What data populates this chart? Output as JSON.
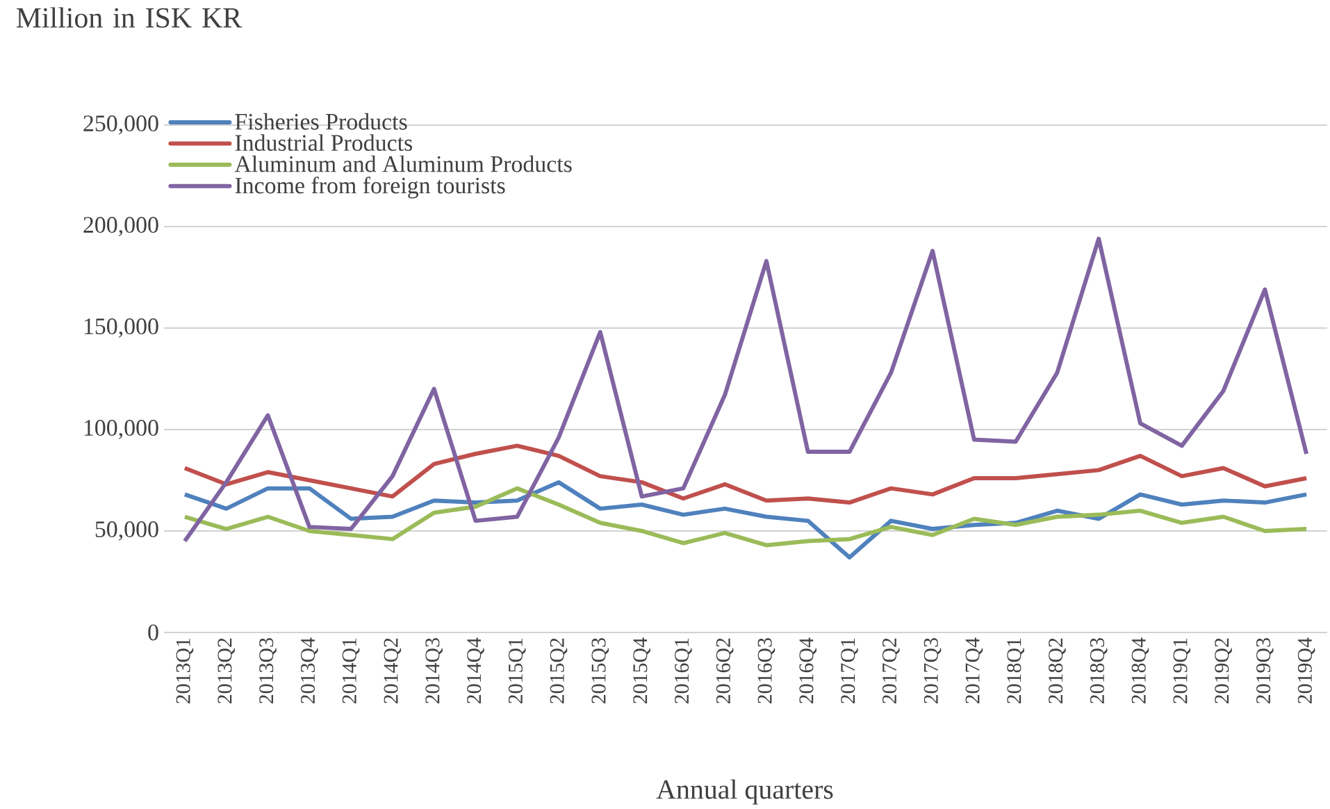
{
  "chart_data": {
    "type": "line",
    "ylabel": "Million in ISK KR",
    "xlabel": "Annual quarters",
    "categories": [
      "2013Q1",
      "2013Q2",
      "2013Q3",
      "2013Q4",
      "2014Q1",
      "2014Q2",
      "2014Q3",
      "2014Q4",
      "2015Q1",
      "2015Q2",
      "2015Q3",
      "2015Q4",
      "2016Q1",
      "2016Q2",
      "2016Q3",
      "2016Q4",
      "2017Q1",
      "2017Q2",
      "2017Q3",
      "2017Q4",
      "2018Q1",
      "2018Q2",
      "2018Q3",
      "2018Q4",
      "2019Q1",
      "2019Q2",
      "2019Q3",
      "2019Q4"
    ],
    "series": [
      {
        "name": "Fisheries Products",
        "color": "#4f81bd",
        "values": [
          68000,
          61000,
          71000,
          71000,
          56000,
          57000,
          65000,
          64000,
          65000,
          74000,
          61000,
          63000,
          58000,
          61000,
          57000,
          55000,
          37000,
          55000,
          51000,
          53000,
          54000,
          60000,
          56000,
          68000,
          63000,
          65000,
          64000,
          68000
        ]
      },
      {
        "name": "Industrial Products",
        "color": "#c0504d",
        "values": [
          81000,
          73000,
          79000,
          75000,
          71000,
          67000,
          83000,
          88000,
          92000,
          87000,
          77000,
          74000,
          66000,
          73000,
          65000,
          66000,
          64000,
          71000,
          68000,
          76000,
          76000,
          78000,
          80000,
          87000,
          77000,
          81000,
          72000,
          76000
        ]
      },
      {
        "name": "Aluminum and Aluminum Products",
        "color": "#9bbb59",
        "values": [
          57000,
          51000,
          57000,
          50000,
          48000,
          46000,
          59000,
          62000,
          71000,
          63000,
          54000,
          50000,
          44000,
          49000,
          43000,
          45000,
          46000,
          52000,
          48000,
          56000,
          53000,
          57000,
          58000,
          60000,
          54000,
          57000,
          50000,
          51000
        ]
      },
      {
        "name": "Income from foreign tourists",
        "color": "#8064a2",
        "values": [
          45000,
          74000,
          107000,
          52000,
          51000,
          77000,
          120000,
          55000,
          57000,
          96000,
          148000,
          67000,
          71000,
          117000,
          183000,
          89000,
          89000,
          128000,
          188000,
          95000,
          94000,
          128000,
          194000,
          103000,
          92000,
          119000,
          169000,
          88000
        ]
      }
    ],
    "ylim": [
      0,
      250000
    ],
    "yticks": [
      {
        "value": 0,
        "label": "0"
      },
      {
        "value": 50000,
        "label": "50,000"
      },
      {
        "value": 100000,
        "label": "100,000"
      },
      {
        "value": 150000,
        "label": "150,000"
      },
      {
        "value": 200000,
        "label": "200,000"
      },
      {
        "value": 250000,
        "label": "250,000"
      }
    ],
    "grid": "y",
    "legend": "top left"
  }
}
